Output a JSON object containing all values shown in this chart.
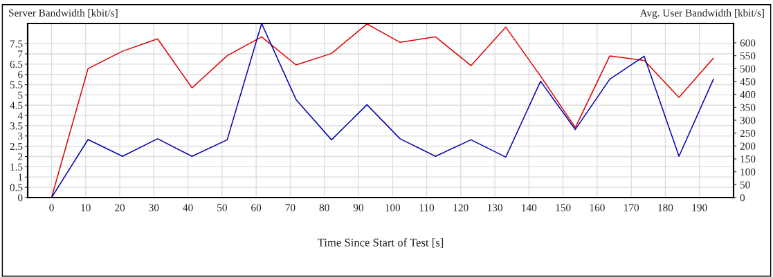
{
  "chart_data": {
    "type": "line",
    "xlabel": "Time Since Start of Test [s]",
    "ylabel": "Server Bandwidth [kbit/s]",
    "y2label": "Avg. User Bandwidth [kbit/s]",
    "x": [
      0,
      10.7,
      20.8,
      31.1,
      41.2,
      51.5,
      61.6,
      71.7,
      82.1,
      92.5,
      102.2,
      112.6,
      123,
      133.2,
      143.4,
      153.6,
      163.7,
      173.8,
      184,
      194.1
    ],
    "series": [
      {
        "color": "#e00000",
        "values": [
          0,
          6.28,
          7.13,
          7.73,
          5.34,
          6.91,
          7.83,
          6.46,
          7.02,
          8.46,
          7.56,
          7.83,
          6.43,
          8.3,
          5.92,
          3.41,
          6.9,
          6.68,
          4.88,
          6.79
        ]
      },
      {
        "color": "#0000b0",
        "axis": "y2",
        "values": [
          0,
          225,
          160,
          228,
          160,
          224,
          675,
          380,
          224,
          360,
          228,
          160,
          224,
          157,
          451,
          264,
          459,
          548,
          160,
          459
        ]
      }
    ],
    "xlim": [
      -7,
      200
    ],
    "xticks": [
      0,
      10,
      20,
      30,
      40,
      50,
      60,
      70,
      80,
      90,
      100,
      110,
      120,
      130,
      140,
      150,
      160,
      170,
      180,
      190
    ],
    "ylim": [
      0,
      8.48
    ],
    "yticks": [
      0,
      0.5,
      1,
      1.5,
      2,
      2.5,
      3,
      3.5,
      4,
      4.5,
      5,
      5.5,
      6,
      6.5,
      7,
      7.5
    ],
    "y2lim": [
      0,
      675
    ],
    "y2ticks": [
      0,
      50,
      100,
      150,
      200,
      250,
      300,
      350,
      400,
      450,
      500,
      550,
      600
    ],
    "grid": true,
    "marker": "none",
    "line_style": "solid"
  }
}
